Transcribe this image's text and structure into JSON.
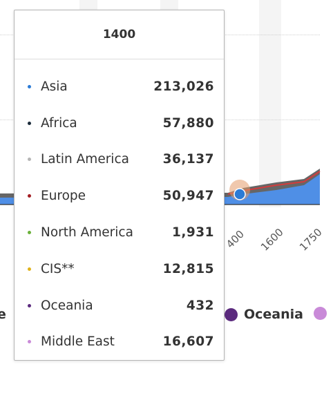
{
  "chart_data": {
    "type": "area",
    "x_tick_labels": [
      "400",
      "1600",
      "1750"
    ],
    "legend_visible": [
      {
        "name": "e",
        "color": ""
      },
      {
        "name": "Oceania",
        "color": "#5b2a7e"
      },
      {
        "name": "",
        "color": "#c98ad8"
      }
    ],
    "tooltip": {
      "title": "1400",
      "rows": [
        {
          "name": "Asia",
          "value": "213,026",
          "color": "#2b7bd6"
        },
        {
          "name": "Africa",
          "value": "57,880",
          "color": "#1b2b3a"
        },
        {
          "name": "Latin America",
          "value": "36,137",
          "color": "#b5b5b5"
        },
        {
          "name": "Europe",
          "value": "50,947",
          "color": "#a31d22"
        },
        {
          "name": "North America",
          "value": "1,931",
          "color": "#6ab13a"
        },
        {
          "name": "CIS**",
          "value": "12,815",
          "color": "#e0b21a"
        },
        {
          "name": "Oceania",
          "value": "432",
          "color": "#5b2a7e"
        },
        {
          "name": "Middle East",
          "value": "16,607",
          "color": "#c98ad8"
        }
      ]
    }
  },
  "colors": {
    "area_asia": "#4f8fe6",
    "band_top": "#666666",
    "europe_line": "#d23c3c",
    "hover_halo": "#e49a6a"
  }
}
